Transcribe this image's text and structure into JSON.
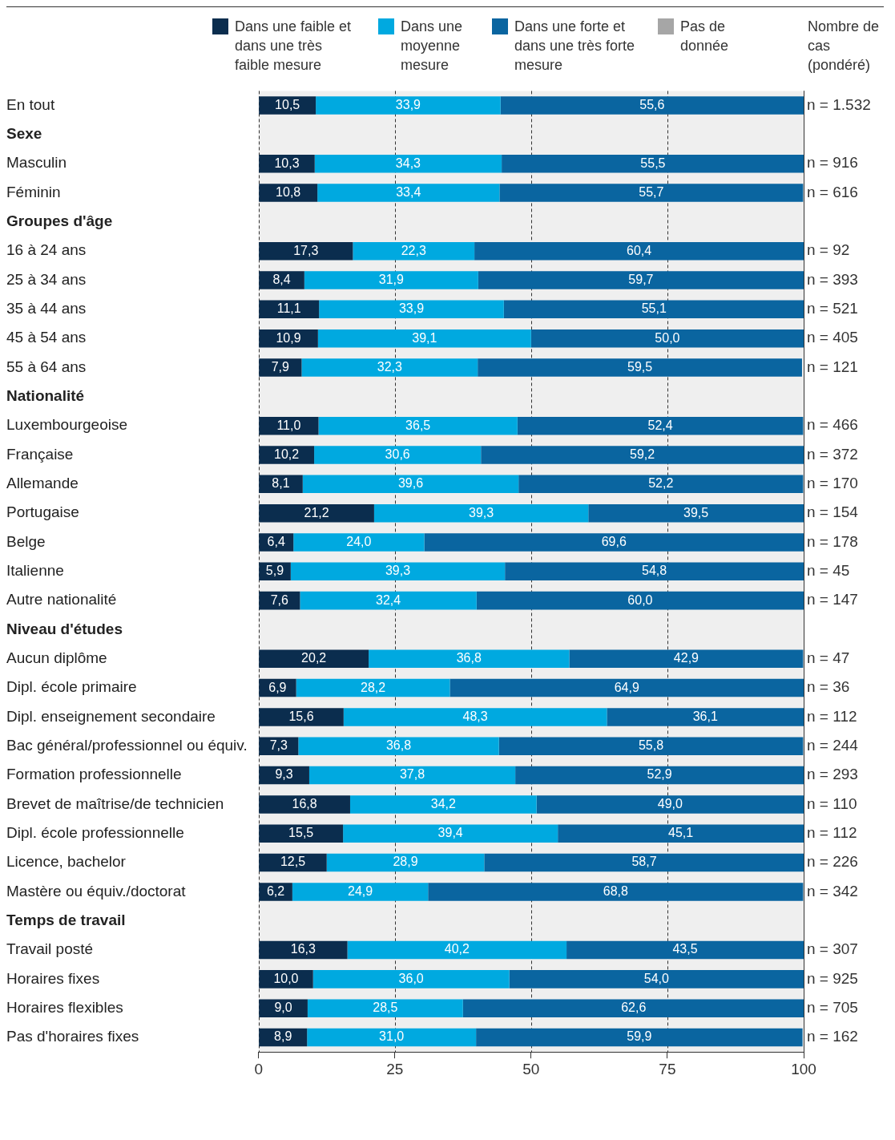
{
  "chart_data": {
    "type": "bar",
    "orientation": "horizontal",
    "stacked": true,
    "grid": "x",
    "line_style": "dashed",
    "legend": "top",
    "categories": [
      "En tout",
      "Sexe",
      "Masculin",
      "Féminin",
      "Groupes d'âge",
      "16 à 24 ans",
      "25 à 34 ans",
      "35 à 44 ans",
      "45 à 54 ans",
      "55 à 64 ans",
      "Nationalité",
      "Luxembourgeoise",
      "Française",
      "Allemande",
      "Portugaise",
      "Belge",
      "Italienne",
      "Autre nationalité",
      "Niveau d'études",
      "Aucun diplôme",
      "Dipl. école primaire",
      "Dipl. enseignement secondaire",
      "Bac général/professionnel ou équiv.",
      "Formation professionnelle",
      "Brevet de maîtrise/de technicien",
      "Dipl. école professionnelle",
      "Licence, bachelor",
      "Mastère ou équiv./doctorat",
      "Temps de travail",
      "Travail posté",
      "Horaires fixes",
      "Horaires flexibles",
      "Pas d'horaires fixes"
    ],
    "series": [
      {
        "name": "Dans une faible et dans une très faible mesure",
        "color": "#0b2d4e",
        "values": [
          10.5,
          null,
          10.3,
          10.8,
          null,
          17.3,
          8.4,
          11.1,
          10.9,
          7.9,
          null,
          11.0,
          10.2,
          8.1,
          21.2,
          6.4,
          5.9,
          7.6,
          null,
          20.2,
          6.9,
          15.6,
          7.3,
          9.3,
          16.8,
          15.5,
          12.5,
          6.2,
          null,
          16.3,
          10.0,
          9.0,
          8.9
        ],
        "value_labels": [
          "10,5",
          null,
          "10,3",
          "10,8",
          null,
          "17,3",
          "8,4",
          "11,1",
          "10,9",
          "7,9",
          null,
          "11,0",
          "10,2",
          "8,1",
          "21,2",
          "6,4",
          "5,9",
          "7,6",
          null,
          "20,2",
          "6,9",
          "15,6",
          "7,3",
          "9,3",
          "16,8",
          "15,5",
          "12,5",
          "6,2",
          null,
          "16,3",
          "10,0",
          "9,0",
          "8,9"
        ]
      },
      {
        "name": "Dans une moyenne mesure",
        "color": "#00a9e0",
        "values": [
          33.9,
          null,
          34.3,
          33.4,
          null,
          22.3,
          31.9,
          33.9,
          39.1,
          32.3,
          null,
          36.5,
          30.6,
          39.6,
          39.3,
          24.0,
          39.3,
          32.4,
          null,
          36.8,
          28.2,
          48.3,
          36.8,
          37.8,
          34.2,
          39.4,
          28.9,
          24.9,
          null,
          40.2,
          36.0,
          28.5,
          31.0
        ],
        "value_labels": [
          "33,9",
          null,
          "34,3",
          "33,4",
          null,
          "22,3",
          "31,9",
          "33,9",
          "39,1",
          "32,3",
          null,
          "36,5",
          "30,6",
          "39,6",
          "39,3",
          "24,0",
          "39,3",
          "32,4",
          null,
          "36,8",
          "28,2",
          "48,3",
          "36,8",
          "37,8",
          "34,2",
          "39,4",
          "28,9",
          "24,9",
          null,
          "40,2",
          "36,0",
          "28,5",
          "31,0"
        ]
      },
      {
        "name": "Dans une forte et dans une très forte mesure",
        "color": "#0a65a0",
        "values": [
          55.6,
          null,
          55.5,
          55.7,
          null,
          60.4,
          59.7,
          55.1,
          50.0,
          59.5,
          null,
          52.4,
          59.2,
          52.2,
          39.5,
          69.6,
          54.8,
          60.0,
          null,
          42.9,
          64.9,
          36.1,
          55.8,
          52.9,
          49.0,
          45.1,
          58.7,
          68.8,
          null,
          43.5,
          54.0,
          62.6,
          59.9
        ],
        "value_labels": [
          "55,6",
          null,
          "55,5",
          "55,7",
          null,
          "60,4",
          "59,7",
          "55,1",
          "50,0",
          "59,5",
          null,
          "52,4",
          "59,2",
          "52,2",
          "39,5",
          "69,6",
          "54,8",
          "60,0",
          null,
          "42,9",
          "64,9",
          "36,1",
          "55,8",
          "52,9",
          "49,0",
          "45,1",
          "58,7",
          "68,8",
          null,
          "43,5",
          "54,0",
          "62,6",
          "59,9"
        ]
      },
      {
        "name": "Pas de donnée",
        "color": "#a6a6a6",
        "values": [
          null,
          null,
          null,
          null,
          null,
          null,
          null,
          null,
          null,
          null,
          null,
          null,
          null,
          null,
          null,
          null,
          null,
          null,
          null,
          null,
          null,
          null,
          null,
          null,
          null,
          null,
          null,
          null,
          null,
          null,
          null,
          null,
          null
        ]
      }
    ],
    "xlim": [
      0,
      100
    ],
    "xticks": [
      0,
      25,
      50,
      75,
      100
    ],
    "annotations": [
      "Nombre de cas (pondéré)",
      "n = 1.532",
      "n = 916",
      "n = 616",
      "n = 92",
      "n = 393",
      "n = 521",
      "n = 405",
      "n = 121",
      "n = 466",
      "n = 372",
      "n = 170",
      "n = 154",
      "n = 178",
      "n = 45",
      "n = 147",
      "n = 47",
      "n = 36",
      "n = 112",
      "n = 244",
      "n = 293",
      "n = 110",
      "n = 112",
      "n = 226",
      "n = 342",
      "n = 307",
      "n = 925",
      "n = 705",
      "n = 162"
    ]
  }
}
